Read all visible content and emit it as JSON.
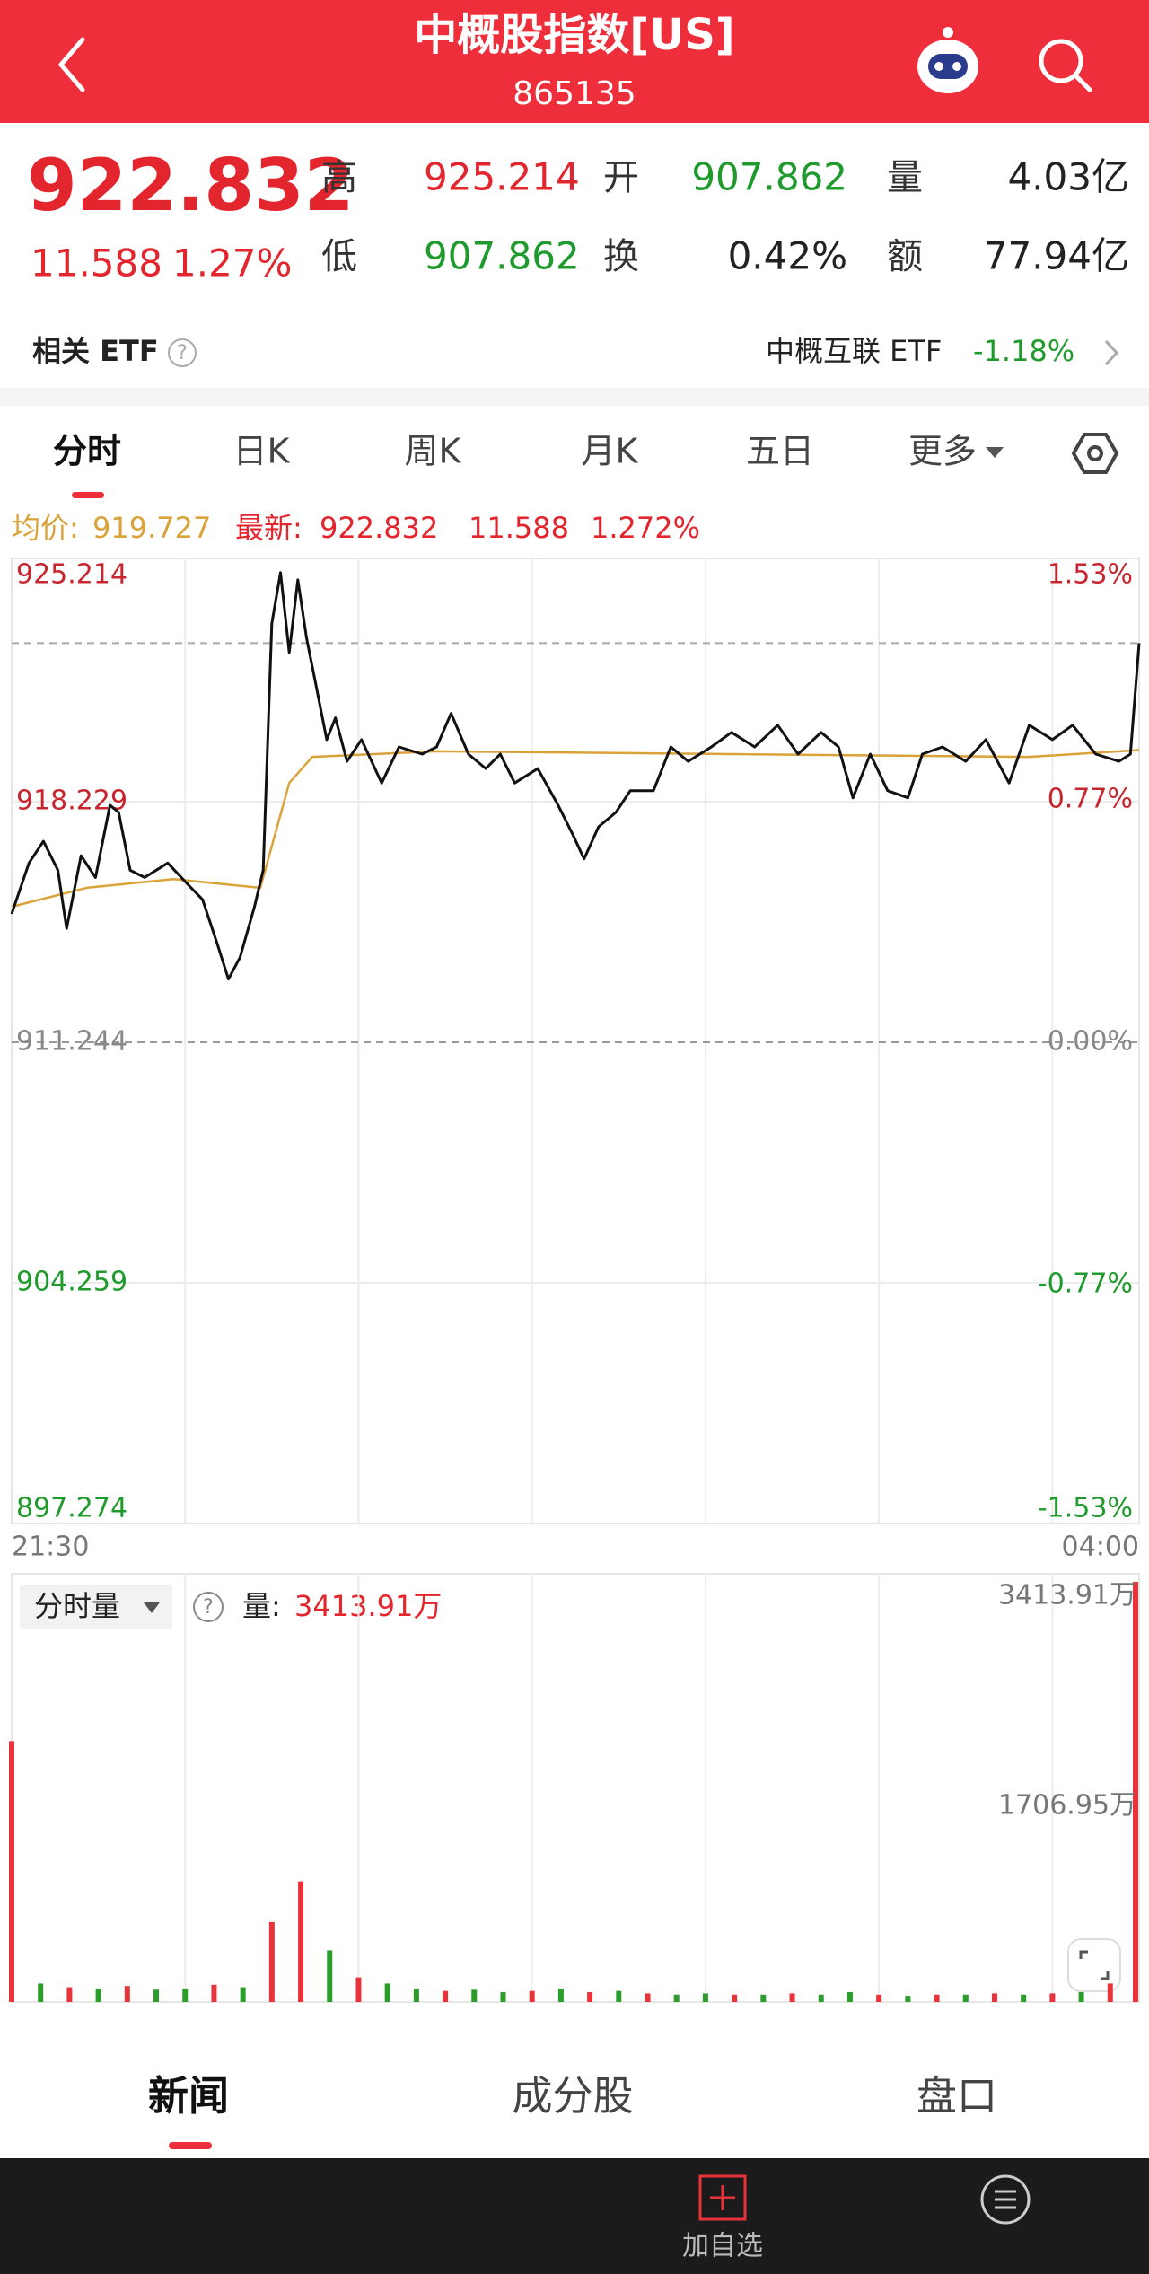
{
  "header": {
    "title": "中概股指数[US]",
    "code": "865135"
  },
  "quote": {
    "price": "922.832",
    "change": "11.588",
    "change_pct": "1.27%",
    "stats": [
      {
        "label": "高",
        "value": "925.214"
      },
      {
        "label": "开",
        "value": "907.862"
      },
      {
        "label": "量",
        "value": "4.03亿"
      },
      {
        "label": "低",
        "value": "907.862"
      },
      {
        "label": "换",
        "value": "0.42%"
      },
      {
        "label": "额",
        "value": "77.94亿"
      }
    ]
  },
  "etf": {
    "label": "相关 ETF",
    "name": "中概互联 ETF",
    "change": "-1.18%"
  },
  "tabs": [
    "分时",
    "日K",
    "周K",
    "月K",
    "五日",
    "更多"
  ],
  "legend": {
    "avg_label": "均价:",
    "avg": "919.727",
    "last_label": "最新:",
    "last": "922.832",
    "change": "11.588",
    "change_pct": "1.272%"
  },
  "chart_data": {
    "type": "line",
    "xlim": [
      "21:30",
      "04:00"
    ],
    "xticks": [
      "21:30",
      "04:00"
    ],
    "xgrid": [
      "22:30",
      "23:30",
      "00:30",
      "01:30",
      "02:30",
      "03:30"
    ],
    "ylim": [
      897.274,
      925.214
    ],
    "yticks": [
      925.214,
      918.229,
      911.244,
      904.259,
      897.274
    ],
    "y2lim": [
      -1.53,
      1.53
    ],
    "y2ticks": [
      {
        "value": 1.53,
        "label": "1.53%"
      },
      {
        "value": 0.77,
        "label": "0.77%"
      },
      {
        "value": 0,
        "label": "0.00%"
      },
      {
        "value": -0.77,
        "label": "-0.77%"
      },
      {
        "value": -1.53,
        "label": "-1.53%"
      }
    ],
    "series": [
      {
        "color": "#111111",
        "x": [
          "21:30",
          "21:36",
          "21:41",
          "21:46",
          "21:49",
          "21:54",
          "21:59",
          "22:04",
          "22:07",
          "22:11",
          "22:16",
          "22:24",
          "22:31",
          "22:36",
          "22:41",
          "22:45",
          "22:49",
          "22:54",
          "22:57",
          "23:00",
          "23:03",
          "23:06",
          "23:09",
          "23:12",
          "23:15",
          "23:19",
          "23:22",
          "23:26",
          "23:31",
          "23:38",
          "23:44",
          "23:52",
          "23:57",
          "00:02",
          "00:08",
          "00:14",
          "00:19",
          "00:24",
          "00:32",
          "00:39",
          "00:44",
          "00:48",
          "00:53",
          "00:59",
          "01:04",
          "01:12",
          "01:18",
          "01:24",
          "01:32",
          "01:39",
          "01:47",
          "01:55",
          "02:02",
          "02:10",
          "02:16",
          "02:21",
          "02:27",
          "02:33",
          "02:40",
          "02:45",
          "02:52",
          "03:00",
          "03:07",
          "03:15",
          "03:22",
          "03:30",
          "03:37",
          "03:45",
          "03:53",
          "03:57",
          "04:00"
        ],
        "values": [
          914.97,
          916.45,
          917.08,
          916.24,
          914.55,
          916.66,
          916.03,
          918.13,
          917.92,
          916.24,
          916.03,
          916.45,
          915.82,
          915.39,
          914.13,
          913.08,
          913.71,
          915.18,
          916.24,
          923.4,
          924.88,
          922.56,
          924.67,
          922.98,
          921.72,
          920.03,
          920.66,
          919.4,
          920.03,
          918.77,
          919.82,
          919.61,
          919.82,
          920.79,
          919.61,
          919.19,
          919.61,
          918.77,
          919.19,
          918.13,
          917.29,
          916.57,
          917.5,
          917.92,
          918.55,
          918.55,
          919.82,
          919.4,
          919.82,
          920.24,
          919.82,
          920.45,
          919.61,
          920.24,
          919.82,
          918.34,
          919.61,
          918.55,
          918.34,
          919.61,
          919.82,
          919.4,
          920.03,
          918.77,
          920.45,
          920.03,
          920.45,
          919.61,
          919.4,
          919.61,
          922.832
        ]
      },
      {
        "color": "#d9a33a",
        "x": [
          "21:30",
          "21:56",
          "22:26",
          "22:56",
          "23:06",
          "23:14",
          "23:57",
          "01:39",
          "03:22",
          "04:00"
        ],
        "values": [
          915.18,
          915.73,
          915.98,
          915.73,
          918.77,
          919.53,
          919.69,
          919.61,
          919.53,
          919.727
        ]
      }
    ]
  },
  "volume_chart": {
    "type": "bar",
    "label": "分时量",
    "value_label": "量:",
    "value_text": "3413.91万",
    "ylim": [
      0,
      3413.91
    ],
    "yticks": [
      {
        "value": 3413.91,
        "label": "3413.91万"
      },
      {
        "value": 1706.95,
        "label": "1706.95万"
      }
    ],
    "x": [
      "21:30",
      "21:40",
      "21:50",
      "22:00",
      "22:10",
      "22:20",
      "22:30",
      "22:40",
      "22:50",
      "23:00",
      "23:10",
      "23:20",
      "23:30",
      "23:40",
      "23:50",
      "00:00",
      "00:10",
      "00:20",
      "00:30",
      "00:40",
      "00:50",
      "01:00",
      "01:10",
      "01:20",
      "01:30",
      "01:40",
      "01:50",
      "02:00",
      "02:10",
      "02:20",
      "02:30",
      "02:40",
      "02:50",
      "03:00",
      "03:10",
      "03:20",
      "03:30",
      "03:40",
      "03:50",
      "04:00"
    ],
    "values": [
      2120,
      150,
      120,
      110,
      130,
      100,
      110,
      140,
      120,
      650,
      980,
      420,
      200,
      150,
      110,
      90,
      100,
      80,
      90,
      110,
      80,
      90,
      70,
      60,
      70,
      60,
      60,
      70,
      60,
      80,
      60,
      50,
      60,
      60,
      70,
      60,
      70,
      80,
      150,
      3413.91
    ],
    "colors": [
      "#e8333b",
      "#2a9d2a",
      "#e8333b",
      "#2a9d2a",
      "#e8333b",
      "#2a9d2a",
      "#2a9d2a",
      "#e8333b",
      "#2a9d2a",
      "#e8333b",
      "#e8333b",
      "#2a9d2a",
      "#e8333b",
      "#2a9d2a",
      "#2a9d2a",
      "#e8333b",
      "#2a9d2a",
      "#2a9d2a",
      "#e8333b",
      "#2a9d2a",
      "#e8333b",
      "#2a9d2a",
      "#e8333b",
      "#2a9d2a",
      "#2a9d2a",
      "#e8333b",
      "#2a9d2a",
      "#e8333b",
      "#2a9d2a",
      "#2a9d2a",
      "#e8333b",
      "#2a9d2a",
      "#e8333b",
      "#2a9d2a",
      "#e8333b",
      "#2a9d2a",
      "#e8333b",
      "#2a9d2a",
      "#e8333b",
      "#e8333b"
    ]
  },
  "bottom_tabs": [
    "新闻",
    "成分股",
    "盘口"
  ],
  "toolbar": {
    "add": "加自选"
  }
}
